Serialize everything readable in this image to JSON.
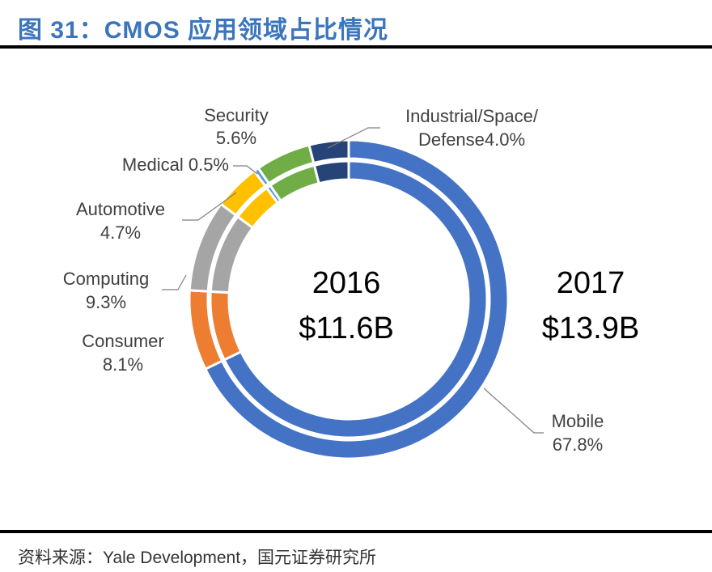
{
  "title": "图 31：CMOS 应用领域占比情况",
  "source": "资料来源：Yale Development，国元证券研究所",
  "chart_data": {
    "type": "pie",
    "subtype": "double-donut",
    "categories": [
      "Mobile",
      "Consumer",
      "Computing",
      "Automotive",
      "Medical",
      "Security",
      "Industrial/Space/Defense"
    ],
    "series": [
      {
        "name": "2016",
        "total_label": "$11.6B",
        "ring": "inner",
        "values": [
          67.8,
          8.1,
          9.3,
          4.7,
          0.5,
          5.6,
          4.0
        ]
      },
      {
        "name": "2017",
        "total_label": "$13.9B",
        "ring": "outer",
        "values": [
          67.8,
          8.1,
          9.3,
          4.7,
          0.5,
          5.6,
          4.0
        ]
      }
    ],
    "colors": [
      "#4472c4",
      "#ed7d31",
      "#a5a5a5",
      "#ffc000",
      "#5b9bd5",
      "#70ad47",
      "#264478"
    ],
    "labels": [
      {
        "line1": "Mobile",
        "line2": "67.8%"
      },
      {
        "line1": "Consumer",
        "line2": "8.1%"
      },
      {
        "line1": "Computing",
        "line2": "9.3%"
      },
      {
        "line1": "Automotive",
        "line2": "4.7%"
      },
      {
        "line1": "Medical 0.5%",
        "line2": ""
      },
      {
        "line1": "Security",
        "line2": "5.6%"
      },
      {
        "line1": "Industrial/Space/",
        "line2": "Defense4.0%"
      }
    ],
    "legend": "none"
  }
}
